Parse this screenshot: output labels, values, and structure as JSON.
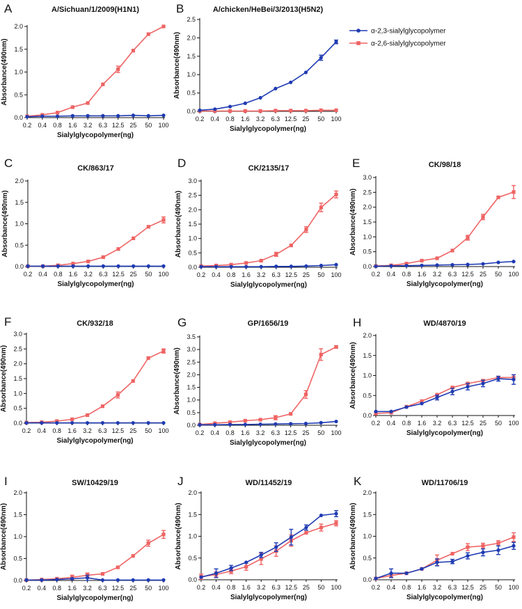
{
  "colors": {
    "alpha23": "#1f3bb3",
    "alpha26": "#ef6464",
    "axis": "#111111"
  },
  "legend": [
    {
      "label": "α-2,3-sialylglycopolymer",
      "series": 0,
      "marker": "circle"
    },
    {
      "label": "α-2,6-sialylglycopolymer",
      "series": 1,
      "marker": "square"
    }
  ],
  "chart_data": [
    {
      "type": "line",
      "letter": "A",
      "title": "A/Sichuan/1/2009(H1N1)",
      "categories": [
        "0.2",
        "0.4",
        "0.8",
        "1.6",
        "3.2",
        "6.3",
        "12.5",
        "25",
        "50",
        "100"
      ],
      "xlabel": "Sialylglycopolymer(ng)",
      "ylabel": "Absorbance(490nm)",
      "ylim": [
        0,
        2.0
      ],
      "yticks": [
        "0.0",
        "0.5",
        "1.0",
        "1.5",
        "2.0"
      ],
      "series": [
        {
          "name": "α-2,3-sialylglycopolymer",
          "values": [
            0.02,
            0.03,
            0.03,
            0.04,
            0.04,
            0.04,
            0.04,
            0.05,
            0.04,
            0.05
          ],
          "err": [
            0,
            0,
            0,
            0,
            0,
            0,
            0,
            0,
            0,
            0
          ]
        },
        {
          "name": "α-2,6-sialylglycopolymer",
          "values": [
            0.03,
            0.06,
            0.11,
            0.23,
            0.32,
            0.73,
            1.06,
            1.47,
            1.83,
            2.0
          ],
          "err": [
            0,
            0,
            0,
            0,
            0,
            0,
            0.07,
            0,
            0,
            0
          ]
        }
      ]
    },
    {
      "type": "line",
      "letter": "B",
      "title": "A/chicken/HeBei/3/2013(H5N2)",
      "categories": [
        "0.2",
        "0.4",
        "0.8",
        "1.6",
        "3.2",
        "6.3",
        "12.5",
        "25",
        "50",
        "100"
      ],
      "xlabel": "Sialylglycopolymer(ng)",
      "ylabel": "Absorbance(490nm)",
      "ylim": [
        0,
        2.5
      ],
      "yticks": [
        "0.0",
        "0.5",
        "1.0",
        "1.5",
        "2.0",
        "2.5"
      ],
      "series": [
        {
          "name": "α-2,3-sialylglycopolymer",
          "values": [
            0.03,
            0.06,
            0.13,
            0.22,
            0.37,
            0.62,
            0.79,
            1.06,
            1.46,
            1.89
          ],
          "err": [
            0,
            0,
            0,
            0,
            0,
            0,
            0,
            0,
            0.07,
            0.05
          ]
        },
        {
          "name": "α-2,6-sialylglycopolymer",
          "values": [
            0.01,
            0.01,
            0.01,
            0.01,
            0.01,
            0.02,
            0.02,
            0.02,
            0.03,
            0.03
          ],
          "err": [
            0,
            0,
            0,
            0,
            0,
            0,
            0,
            0,
            0,
            0
          ]
        }
      ]
    },
    {
      "type": "line",
      "letter": "C",
      "title": "CK/863/17",
      "categories": [
        "0.2",
        "0.4",
        "0.8",
        "1.6",
        "3.2",
        "6.3",
        "12.5",
        "25",
        "50",
        "100"
      ],
      "xlabel": "Sialylglycopolymer(ng)",
      "ylabel": "Absorbance(490nm)",
      "ylim": [
        0,
        2.0
      ],
      "yticks": [
        "0.0",
        "0.5",
        "1.0",
        "1.5",
        "2.0"
      ],
      "series": [
        {
          "name": "α-2,3-sialylglycopolymer",
          "values": [
            0.01,
            0.01,
            0.01,
            0.01,
            0.01,
            0.01,
            0.01,
            0.01,
            0.01,
            0.01
          ],
          "err": [
            0,
            0,
            0,
            0,
            0,
            0,
            0,
            0,
            0,
            0
          ]
        },
        {
          "name": "α-2,6-sialylglycopolymer",
          "values": [
            0.01,
            0.01,
            0.03,
            0.07,
            0.12,
            0.22,
            0.41,
            0.66,
            0.93,
            1.09
          ],
          "err": [
            0,
            0,
            0,
            0,
            0,
            0,
            0,
            0,
            0,
            0.07
          ]
        }
      ]
    },
    {
      "type": "line",
      "letter": "D",
      "title": "CK/2135/17",
      "categories": [
        "0.2",
        "0.4",
        "0.8",
        "1.6",
        "3.2",
        "6.3",
        "12.5",
        "25",
        "50",
        "100"
      ],
      "xlabel": "Sialylglycopolymer(ng)",
      "ylabel": "Absorbance(490nm)",
      "ylim": [
        0,
        3.0
      ],
      "yticks": [
        "0.0",
        "0.5",
        "1.0",
        "1.5",
        "2.0",
        "2.5",
        "3.0"
      ],
      "series": [
        {
          "name": "α-2,3-sialylglycopolymer",
          "values": [
            0.02,
            0.02,
            0.02,
            0.02,
            0.02,
            0.03,
            0.03,
            0.04,
            0.06,
            0.09
          ],
          "err": [
            0,
            0,
            0,
            0,
            0,
            0,
            0,
            0,
            0,
            0
          ]
        },
        {
          "name": "α-2,6-sialylglycopolymer",
          "values": [
            0.04,
            0.06,
            0.09,
            0.15,
            0.23,
            0.45,
            0.76,
            1.31,
            2.08,
            2.53
          ],
          "err": [
            0,
            0,
            0,
            0,
            0,
            0.07,
            0,
            0.1,
            0.15,
            0.12
          ]
        }
      ]
    },
    {
      "type": "line",
      "letter": "E",
      "title": "CK/98/18",
      "categories": [
        "0.2",
        "0.4",
        "0.8",
        "1.6",
        "3.2",
        "6.3",
        "12.5",
        "25",
        "50",
        "100"
      ],
      "xlabel": "Sialylglycopolymer(ng)",
      "ylabel": "Absorbance(490nm)",
      "ylim": [
        0,
        3.0
      ],
      "yticks": [
        "0.0",
        "0.5",
        "1.0",
        "1.5",
        "2.0",
        "2.5",
        "3.0"
      ],
      "series": [
        {
          "name": "α-2,3-sialylglycopolymer",
          "values": [
            0.01,
            0.02,
            0.03,
            0.04,
            0.05,
            0.06,
            0.07,
            0.09,
            0.14,
            0.17
          ],
          "err": [
            0,
            0,
            0,
            0,
            0,
            0,
            0,
            0,
            0,
            0
          ]
        },
        {
          "name": "α-2,6-sialylglycopolymer",
          "values": [
            0.02,
            0.04,
            0.1,
            0.2,
            0.28,
            0.54,
            0.97,
            1.67,
            2.33,
            2.51
          ],
          "err": [
            0,
            0,
            0,
            0,
            0,
            0,
            0.08,
            0.09,
            0,
            0.22
          ]
        }
      ]
    },
    {
      "type": "line",
      "letter": "F",
      "title": "CK/932/18",
      "categories": [
        "0.2",
        "0.4",
        "0.8",
        "1.6",
        "3.2",
        "6.3",
        "12.5",
        "25",
        "50",
        "100"
      ],
      "xlabel": "Sialylglycopolymer(ng)",
      "ylabel": "Absorbance(490nm)",
      "ylim": [
        0,
        3.0
      ],
      "yticks": [
        "0.0",
        "0.5",
        "1.0",
        "1.5",
        "2.0",
        "2.5",
        "3.0"
      ],
      "series": [
        {
          "name": "α-2,3-sialylglycopolymer",
          "values": [
            0.01,
            0.01,
            0.01,
            0.01,
            0.01,
            0.01,
            0.01,
            0.01,
            0.01,
            0.01
          ],
          "err": [
            0,
            0,
            0,
            0,
            0,
            0,
            0,
            0,
            0,
            0
          ]
        },
        {
          "name": "α-2,6-sialylglycopolymer",
          "values": [
            0.02,
            0.03,
            0.07,
            0.13,
            0.27,
            0.57,
            0.95,
            1.42,
            2.19,
            2.43
          ],
          "err": [
            0,
            0,
            0,
            0,
            0,
            0,
            0.1,
            0,
            0,
            0.07
          ]
        }
      ]
    },
    {
      "type": "line",
      "letter": "G",
      "title": "GP/1656/19",
      "categories": [
        "0.2",
        "0.4",
        "0.8",
        "1.6",
        "3.2",
        "6.3",
        "12.5",
        "25",
        "50",
        "100"
      ],
      "xlabel": "Sialylglycopolymer(ng)",
      "ylabel": "Absorbance(490nm)",
      "ylim": [
        0,
        3.5
      ],
      "yticks": [
        "0.0",
        "0.5",
        "1.0",
        "1.5",
        "2.0",
        "2.5",
        "3.0",
        "3.5"
      ],
      "series": [
        {
          "name": "α-2,3-sialylglycopolymer",
          "values": [
            0.02,
            0.02,
            0.03,
            0.03,
            0.04,
            0.05,
            0.06,
            0.07,
            0.1,
            0.15
          ],
          "err": [
            0,
            0,
            0,
            0,
            0,
            0,
            0,
            0,
            0,
            0
          ]
        },
        {
          "name": "α-2,6-sialylglycopolymer",
          "values": [
            0.03,
            0.08,
            0.12,
            0.18,
            0.22,
            0.3,
            0.45,
            1.22,
            2.8,
            3.1
          ],
          "err": [
            0,
            0,
            0,
            0,
            0,
            0.08,
            0,
            0.15,
            0.23,
            0.05
          ]
        }
      ]
    },
    {
      "type": "line",
      "letter": "H",
      "title": "WD/4870/19",
      "categories": [
        "0.2",
        "0.4",
        "0.8",
        "1.6",
        "3.2",
        "6.3",
        "12.5",
        "25",
        "50",
        "100"
      ],
      "xlabel": "Sialylglycopolymer(ng)",
      "ylabel": "Absorbance(490nm)",
      "ylim": [
        0,
        2.0
      ],
      "yticks": [
        "0.0",
        "0.5",
        "1.0",
        "1.5",
        "2.0"
      ],
      "series": [
        {
          "name": "α-2,3-sialylglycopolymer",
          "values": [
            0.1,
            0.1,
            0.21,
            0.3,
            0.45,
            0.6,
            0.72,
            0.8,
            0.92,
            0.9
          ],
          "err": [
            0,
            0,
            0,
            0,
            0.06,
            0.08,
            0.08,
            0.08,
            0.06,
            0.12
          ]
        },
        {
          "name": "α-2,6-sialylglycopolymer",
          "values": [
            0.05,
            0.07,
            0.22,
            0.36,
            0.52,
            0.7,
            0.8,
            0.87,
            0.95,
            0.95
          ],
          "err": [
            0,
            0,
            0,
            0,
            0,
            0,
            0,
            0,
            0,
            0
          ]
        }
      ]
    },
    {
      "type": "line",
      "letter": "I",
      "title": "SW/10429/19",
      "categories": [
        "0.2",
        "0.4",
        "0.8",
        "1.6",
        "3.2",
        "6.3",
        "12.5",
        "25",
        "50",
        "100"
      ],
      "xlabel": "Sialylglycopolymer(ng)",
      "ylabel": "Absorbance(490nm)",
      "ylim": [
        0,
        2.0
      ],
      "yticks": [
        "0.0",
        "0.5",
        "1.0",
        "1.5",
        "2.0"
      ],
      "series": [
        {
          "name": "α-2,3-sialylglycopolymer",
          "values": [
            0.01,
            0.01,
            0.02,
            0.04,
            0.06,
            0.01,
            0.01,
            0.01,
            0.01,
            0.01
          ],
          "err": [
            0,
            0,
            0,
            0,
            0.06,
            0,
            0,
            0,
            0,
            0
          ]
        },
        {
          "name": "α-2,6-sialylglycopolymer",
          "values": [
            0.01,
            0.02,
            0.04,
            0.07,
            0.12,
            0.15,
            0.3,
            0.56,
            0.85,
            1.05
          ],
          "err": [
            0,
            0,
            0,
            0.05,
            0.05,
            0,
            0,
            0,
            0.07,
            0.09
          ]
        }
      ]
    },
    {
      "type": "line",
      "letter": "J",
      "title": "WD/11452/19",
      "categories": [
        "0.2",
        "0.4",
        "0.8",
        "1.6",
        "3.2",
        "6.3",
        "12.5",
        "25",
        "50",
        "100"
      ],
      "xlabel": "Sialylglycopolymer(ng)",
      "ylabel": "Absorbance(490nm)",
      "ylim": [
        0,
        2.0
      ],
      "yticks": [
        "0.0",
        "0.5",
        "1.0",
        "1.5",
        "2.0"
      ],
      "series": [
        {
          "name": "α-2,3-sialylglycopolymer",
          "values": [
            0.06,
            0.15,
            0.27,
            0.4,
            0.57,
            0.75,
            0.98,
            1.2,
            1.48,
            1.52
          ],
          "err": [
            0,
            0.1,
            0.06,
            0,
            0.06,
            0.1,
            0.18,
            0.06,
            0,
            0.07
          ]
        },
        {
          "name": "α-2,6-sialylglycopolymer",
          "values": [
            0.07,
            0.12,
            0.2,
            0.3,
            0.48,
            0.66,
            0.9,
            1.08,
            1.2,
            1.3
          ],
          "err": [
            0.06,
            0.06,
            0.06,
            0.08,
            0.13,
            0.12,
            0.13,
            0,
            0.08,
            0.06
          ]
        }
      ]
    },
    {
      "type": "line",
      "letter": "K",
      "title": "WD/11706/19",
      "categories": [
        "0.2",
        "0.4",
        "0.8",
        "1.6",
        "3.2",
        "6.3",
        "12.5",
        "25",
        "50",
        "100"
      ],
      "xlabel": "Sialylglycopolymer(ng)",
      "ylabel": "Absorbance(490nm)",
      "ylim": [
        0,
        2.0
      ],
      "yticks": [
        "0.0",
        "0.5",
        "1.0",
        "1.5",
        "2.0"
      ],
      "series": [
        {
          "name": "α-2,3-sialylglycopolymer",
          "values": [
            0.03,
            0.15,
            0.15,
            0.25,
            0.4,
            0.42,
            0.55,
            0.63,
            0.68,
            0.78
          ],
          "err": [
            0,
            0.1,
            0,
            0,
            0.08,
            0.05,
            0.07,
            0.08,
            0.1,
            0.08
          ]
        },
        {
          "name": "α-2,6-sialylglycopolymer",
          "values": [
            0.03,
            0.1,
            0.15,
            0.25,
            0.45,
            0.6,
            0.75,
            0.78,
            0.84,
            0.98
          ],
          "err": [
            0,
            0,
            0,
            0,
            0.12,
            0,
            0.08,
            0.06,
            0.06,
            0.1
          ]
        }
      ]
    }
  ]
}
